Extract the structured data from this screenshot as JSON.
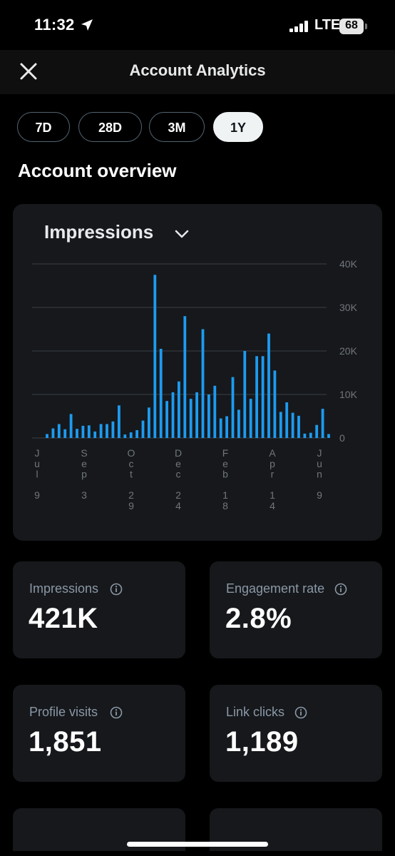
{
  "status_bar": {
    "time": "11:32",
    "network": "LTE",
    "battery": "68",
    "location_icon": "location-arrow-icon",
    "signal_icon": "signal-bars-icon"
  },
  "header": {
    "title": "Account Analytics",
    "close_icon": "close-icon"
  },
  "ranges": [
    {
      "label": "7D",
      "active": false
    },
    {
      "label": "28D",
      "active": false
    },
    {
      "label": "3M",
      "active": false
    },
    {
      "label": "1Y",
      "active": true
    }
  ],
  "section_title": "Account overview",
  "metric_selector": {
    "label": "Impressions",
    "icon": "chevron-down-icon"
  },
  "chart_data": {
    "type": "bar",
    "y_ticks": [
      "40K",
      "30K",
      "20K",
      "10K",
      "0"
    ],
    "ylim": [
      0,
      40000
    ],
    "grid": true,
    "x_tick_labels": [
      "Jul 9",
      "Sep 3",
      "Oct 29",
      "Dec 24",
      "Feb 18",
      "Apr 14",
      "Jun 9"
    ],
    "values": [
      900,
      2200,
      3200,
      2000,
      5500,
      2100,
      2800,
      2900,
      1500,
      3200,
      3200,
      3800,
      7500,
      800,
      1300,
      1800,
      4000,
      7000,
      37500,
      20500,
      8500,
      10500,
      13000,
      28000,
      9000,
      10500,
      25000,
      10000,
      12000,
      4500,
      5000,
      14000,
      6500,
      20000,
      9000,
      18800,
      18800,
      24000,
      15500,
      6000,
      8200,
      5800,
      5100,
      1000,
      1200,
      3000,
      6700,
      900
    ],
    "color": "#1d9bf0"
  },
  "stats": [
    {
      "label": "Impressions",
      "value": "421K",
      "icon": "info-icon"
    },
    {
      "label": "Engagement rate",
      "value": "2.8%",
      "icon": "info-icon"
    },
    {
      "label": "Profile visits",
      "value": "1,851",
      "icon": "info-icon"
    },
    {
      "label": "Link clicks",
      "value": "1,189",
      "icon": "info-icon"
    }
  ],
  "colors": {
    "accent": "#1d9bf0",
    "card": "#16181c",
    "muted": "#8b98a5"
  }
}
